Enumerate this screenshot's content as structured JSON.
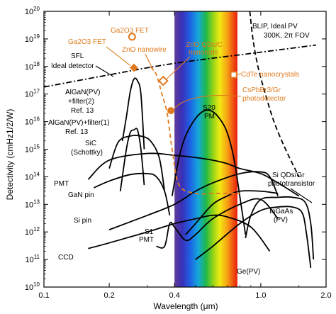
{
  "chart_data": {
    "type": "line",
    "title": "",
    "xlabel": "Wavelength (μm)",
    "ylabel": "Detectivity (cmHz1/2/W)",
    "x_scale": "log",
    "y_scale": "log",
    "xlim": [
      0.1,
      2.0
    ],
    "ylim": [
      10000000000.0,
      1e+20
    ],
    "x_ticks": [
      {
        "value": 0.1,
        "label": "0.1"
      },
      {
        "value": 0.2,
        "label": "0.2"
      },
      {
        "value": 0.4,
        "label": "0.4"
      },
      {
        "value": 1.0,
        "label": "1.0"
      },
      {
        "value": 2.0,
        "label": "2.0"
      }
    ],
    "y_ticks": [
      {
        "value": 10000000000.0,
        "base": "10",
        "exp": "10"
      },
      {
        "value": 100000000000.0,
        "base": "10",
        "exp": "11"
      },
      {
        "value": 1000000000000.0,
        "base": "10",
        "exp": "12"
      },
      {
        "value": 10000000000000.0,
        "base": "10",
        "exp": "13"
      },
      {
        "value": 100000000000000.0,
        "base": "10",
        "exp": "14"
      },
      {
        "value": 1000000000000000.0,
        "base": "10",
        "exp": "15"
      },
      {
        "value": 1e+16,
        "base": "10",
        "exp": "16"
      },
      {
        "value": 1e+17,
        "base": "10",
        "exp": "17"
      },
      {
        "value": 1e+18,
        "base": "10",
        "exp": "18"
      },
      {
        "value": 1e+19,
        "base": "10",
        "exp": "19"
      },
      {
        "value": 1e+20,
        "base": "10",
        "exp": "20"
      }
    ],
    "visible_band": {
      "xmin": 0.4,
      "xmax": 0.78
    },
    "colors": {
      "orange": "#e07b1f",
      "black": "#000000"
    },
    "series": [
      {
        "name": "SFL Ideal detector",
        "style": "dashdot",
        "x": [
          0.1,
          0.2,
          0.4,
          1.0,
          1.8
        ],
        "y": [
          1.8e+17,
          5e+17,
          1.3e+18,
          3.3e+18,
          6e+18
        ]
      },
      {
        "name": "BLIP, Ideal PV 300K, 2π FOV",
        "style": "dashed",
        "x": [
          0.89,
          0.92,
          0.97,
          1.05,
          1.15,
          1.3,
          1.5
        ],
        "y": [
          1e+20,
          1e+19,
          1e+18,
          1e+17,
          1e+16,
          1000000000000000.0,
          100000000000000.0
        ]
      },
      {
        "name": "AlGaN(PV)+filter(2) Ref. 13",
        "style": "solid",
        "x": [
          0.23,
          0.24,
          0.25,
          0.26,
          0.27,
          0.28,
          0.29
        ],
        "y": [
          2000000000000000.0,
          1.5e+16,
          1.2e+17,
          3.5e+17,
          3e+17,
          1e+17,
          1000000000000000.0
        ]
      },
      {
        "name": "AlGaN(PV)+filter(1) Ref. 13",
        "style": "solid",
        "x": [
          0.225,
          0.24,
          0.25,
          0.26,
          0.27,
          0.28,
          0.29
        ],
        "y": [
          30000000000000.0,
          1000000000000000.0,
          4000000000000000.0,
          5000000000000000.0,
          5000000000000000.0,
          1000000000000000.0,
          50000000000000.0
        ]
      },
      {
        "name": "SiC (Schottky)",
        "style": "solid",
        "x": [
          0.2,
          0.22,
          0.25,
          0.28,
          0.31,
          0.34,
          0.36
        ],
        "y": [
          200000000000000.0,
          1800000000000000.0,
          3000000000000000.0,
          3000000000000000.0,
          2000000000000000.0,
          500000000000000.0,
          30000000000000.0
        ]
      },
      {
        "name": "PMT",
        "style": "solid",
        "x": [
          0.16,
          0.2,
          0.3,
          0.4,
          0.5,
          0.6,
          0.7,
          0.8,
          1.0,
          1.2,
          1.5
        ],
        "y": [
          80000000000000.0,
          400000000000000.0,
          700000000000000.0,
          600000000000000.0,
          500000000000000.0,
          400000000000000.0,
          300000000000000.0,
          200000000000000.0,
          130000000000000.0,
          60000000000000.0,
          20000000000000.0
        ]
      },
      {
        "name": "GaN pin",
        "style": "solid",
        "x": [
          0.17,
          0.2,
          0.25,
          0.3,
          0.33,
          0.36,
          0.38
        ],
        "y": [
          40000000000000.0,
          70000000000000.0,
          120000000000000.0,
          130000000000000.0,
          100000000000000.0,
          30000000000000.0,
          4000000000000.0
        ]
      },
      {
        "name": "Si pin",
        "style": "solid",
        "x": [
          0.2,
          0.3,
          0.4,
          0.5,
          0.6,
          0.8,
          1.0,
          1.1,
          1.2
        ],
        "y": [
          1200000000000.0,
          4000000000000.0,
          10000000000000.0,
          30000000000000.0,
          60000000000000.0,
          130000000000000.0,
          150000000000000.0,
          100000000000000.0,
          20000000000000.0
        ]
      },
      {
        "name": "S20 PM",
        "style": "solid",
        "x": [
          0.39,
          0.42,
          0.45,
          0.5,
          0.55,
          0.6,
          0.65,
          0.7,
          0.75,
          0.8,
          0.85
        ],
        "y": [
          20000000000000.0,
          500000000000000.0,
          3000000000000000.0,
          1.3e+16,
          2.5e+16,
          2.3e+16,
          1.2e+16,
          4000000000000000.0,
          500000000000000.0,
          20000000000000.0,
          800000000000.0
        ]
      },
      {
        "name": "S1 PMT",
        "style": "solid",
        "x": [
          0.33,
          0.36,
          0.38,
          0.4,
          0.45,
          0.5,
          0.6,
          0.8,
          1.0,
          1.2
        ],
        "y": [
          300000000000.0,
          300000000000.0,
          2000000000000.0,
          1500000000000.0,
          500000000000.0,
          800000000000.0,
          3000000000000.0,
          10000000000000.0,
          15000000000000.0,
          3000000000000.0
        ]
      },
      {
        "name": "CCD",
        "style": "solid",
        "x": [
          0.16,
          0.2,
          0.3,
          0.4,
          0.5,
          0.6,
          0.7,
          0.9,
          1.1
        ],
        "y": [
          250000000000.0,
          400000000000.0,
          1000000000000.0,
          2000000000000.0,
          3000000000000.0,
          4000000000000.0,
          3500000000000.0,
          1500000000000.0,
          200000000000.0
        ]
      },
      {
        "name": "InGaAs (PV)",
        "style": "solid",
        "x": [
          0.85,
          0.9,
          1.0,
          1.2,
          1.4,
          1.6,
          1.7,
          1.75
        ],
        "y": [
          600000000000.0,
          4000000000000.0,
          15000000000000.0,
          18000000000000.0,
          18000000000000.0,
          12000000000000.0,
          2000000000000.0,
          100000000000.0
        ]
      },
      {
        "name": "Ge(PV)",
        "style": "solid",
        "x": [
          0.5,
          0.6,
          0.8,
          1.0,
          1.2,
          1.4,
          1.55,
          1.62,
          1.7
        ],
        "y": [
          100000000000.0,
          300000000000.0,
          2000000000000.0,
          6000000000000.0,
          8000000000000.0,
          8000000000000.0,
          5000000000000.0,
          1000000000000.0,
          50000000000.0
        ]
      },
      {
        "name": "Si QDs/Gr phototransistor",
        "style": "solid",
        "x": [
          0.45,
          0.5,
          0.6,
          0.7,
          0.8,
          1.0,
          1.2
        ],
        "y": [
          800000000000.0,
          2000000000000.0,
          10000000000000.0,
          20000000000000.0,
          30000000000000.0,
          30000000000000.0,
          25000000000000.0
        ]
      },
      {
        "name": "ZnO nanowire",
        "style": "orange-dashed",
        "x": [
          0.31,
          0.33,
          0.35,
          0.37,
          0.39,
          0.42,
          0.5,
          0.6,
          0.7,
          0.8
        ],
        "y": [
          1e+18,
          5e+17,
          1e+17,
          2e+16,
          1000000000000000.0,
          50000000000000.0,
          25000000000000.0,
          25000000000000.0,
          25000000000000.0,
          25000000000000.0
        ]
      }
    ],
    "markers": [
      {
        "name": "Ga2O3 FET",
        "shape": "open-circle",
        "x": 0.255,
        "y": 1.2e+19
      },
      {
        "name": "Ga2O3 FET",
        "shape": "filled-diamond",
        "x": 0.26,
        "y": 9e+17
      },
      {
        "name": "ZnO QDs/C nanorods",
        "shape": "open-diamond",
        "x": 0.355,
        "y": 3e+17
      },
      {
        "name": "CdTe nanocrystals",
        "shape": "open-square",
        "x": 0.75,
        "y": 5e+17
      },
      {
        "name": "CsPbBr3/Gr photodetector",
        "shape": "filled-circle",
        "x": 0.385,
        "y": 2.5e+16
      }
    ],
    "annotations": {
      "sfl_line1": "SFL",
      "sfl_line2": "Ideal detector",
      "blip_line1": "BLIP, Ideal PV",
      "blip_line2": "300K, 2π FOV",
      "ga2o3_top": "Ga2O3 FET",
      "ga2o3_left": "Ga2O3 FET",
      "zno_nanowire": "ZnO nanowire",
      "zno_qds_1": "ZnO QDs/C",
      "zno_qds_2": "nanorods",
      "cdte": "CdTe nanocrystals",
      "cspbbr_1": "CsPbBr3/Gr",
      "cspbbr_2": "photodetector",
      "algan2_1": "AlGaN(PV)",
      "algan2_2": "+filter(2)",
      "algan2_3": "Ref. 13",
      "algan1_1": "AlGaN(PV)+filter(1)",
      "algan1_2": "Ref. 13",
      "sic_1": "SiC",
      "sic_2": "(Schottky)",
      "s20_1": "S20",
      "s20_2": "PM",
      "pmt": "PMT",
      "gan": "GaN pin",
      "sipin": "Si pin",
      "s1_1": "S1",
      "s1_2": "PMT",
      "ccd": "CCD",
      "ingaas_1": "InGaAs",
      "ingaas_2": "(PV)",
      "ge": "Ge(PV)",
      "siqd_1": "Si QDs/Gr",
      "siqd_2": "phototransistor"
    }
  }
}
